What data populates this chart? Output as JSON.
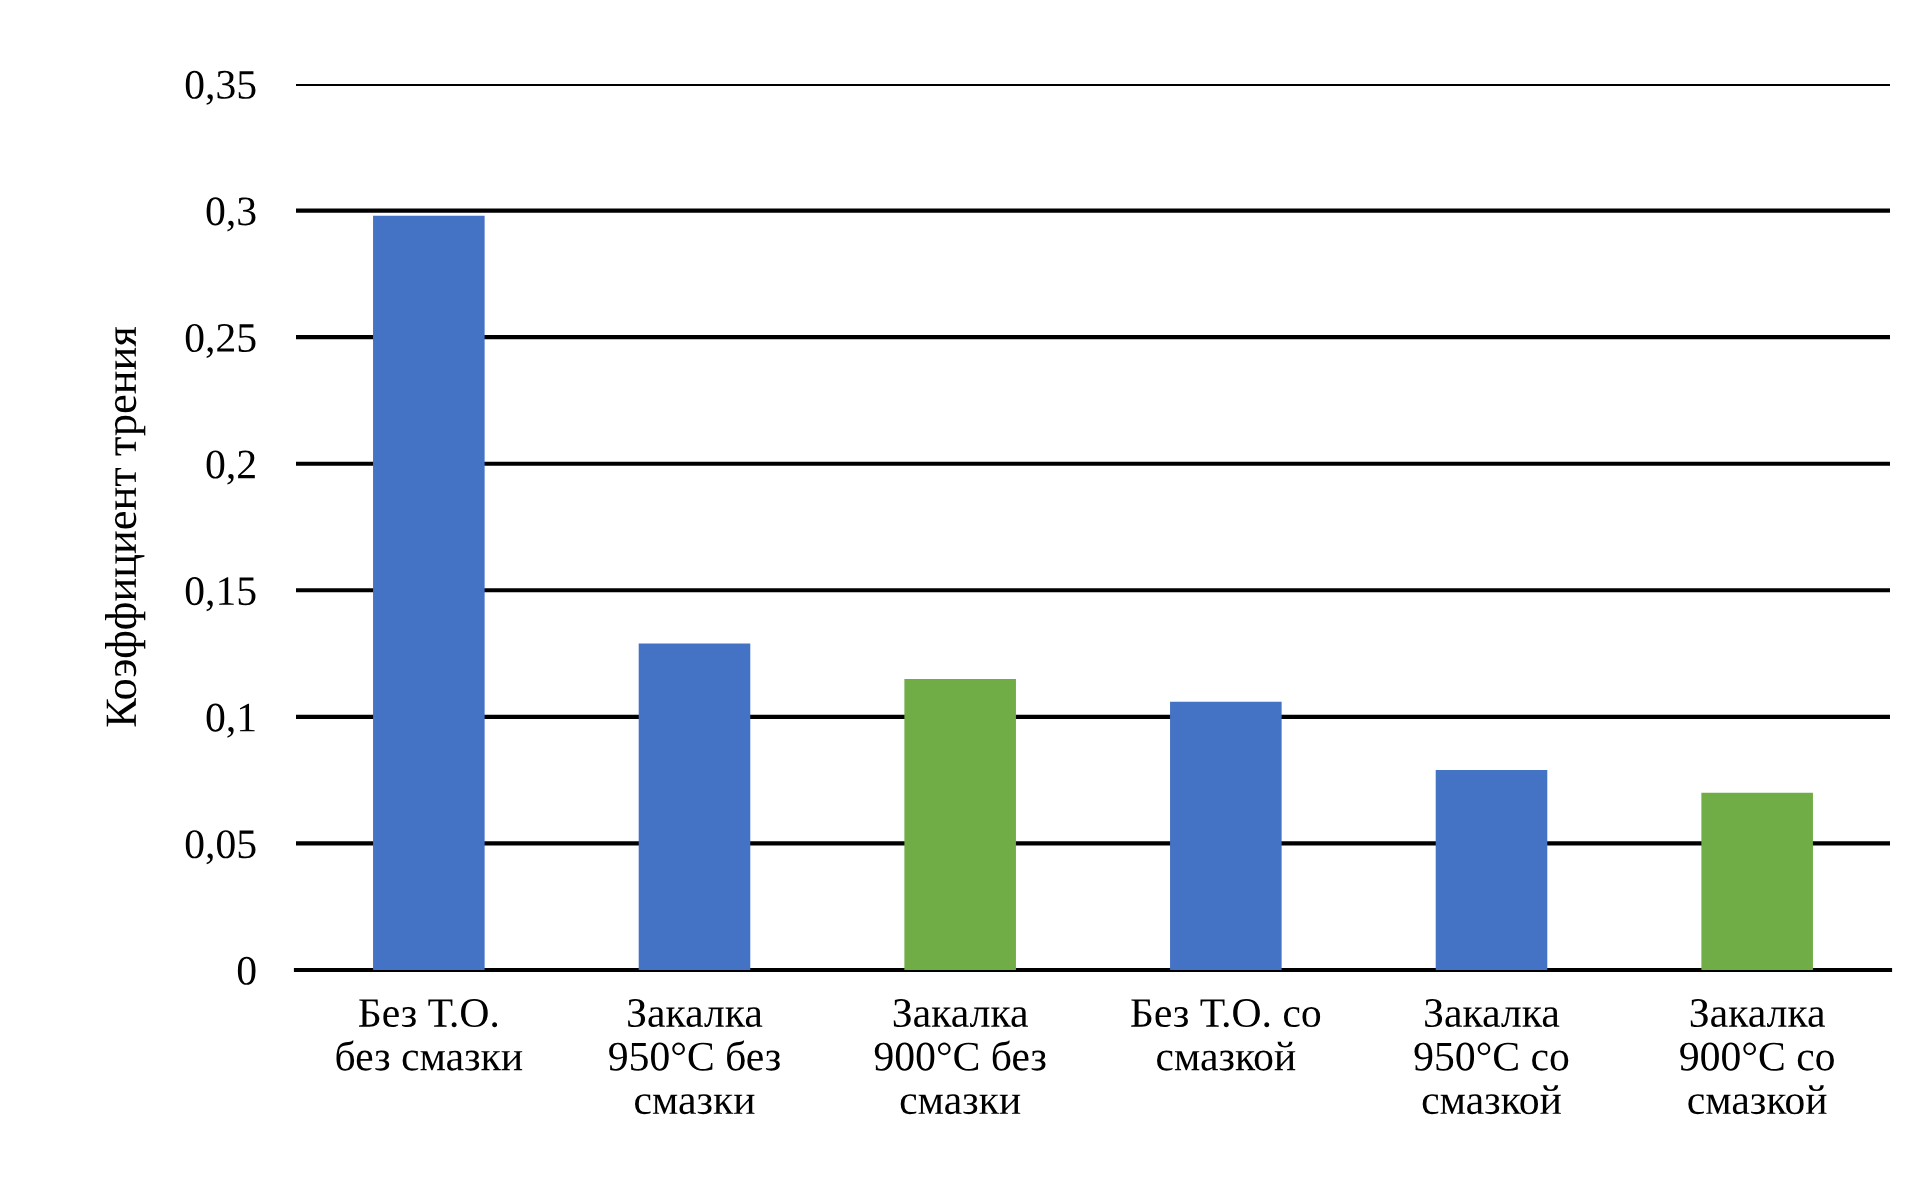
{
  "chart_data": {
    "type": "bar",
    "ylabel": "Коэффициент трения",
    "categories": [
      "Без Т.О.\nбез смазки",
      "Закалка\n950°C без\nсмазки",
      "Закалка\n900°C без\nсмазки",
      "Без Т.О. со\nсмазкой",
      "Закалка\n950°C со\nсмазкой",
      "Закалка\n900°C со\nсмазкой"
    ],
    "values": [
      0.298,
      0.129,
      0.115,
      0.106,
      0.079,
      0.07
    ],
    "colors": [
      "#4472c4",
      "#4472c4",
      "#70ad47",
      "#4472c4",
      "#4472c4",
      "#70ad47"
    ],
    "ylim": [
      0,
      0.35
    ],
    "yticks": [
      {
        "value": 0,
        "label": "0"
      },
      {
        "value": 0.05,
        "label": "0,05"
      },
      {
        "value": 0.1,
        "label": "0,1"
      },
      {
        "value": 0.15,
        "label": "0,15"
      },
      {
        "value": 0.2,
        "label": "0,2"
      },
      {
        "value": 0.25,
        "label": "0,25"
      },
      {
        "value": 0.3,
        "label": "0,3"
      },
      {
        "value": 0.35,
        "label": "0,35"
      }
    ],
    "grid": "y",
    "legend": false
  }
}
